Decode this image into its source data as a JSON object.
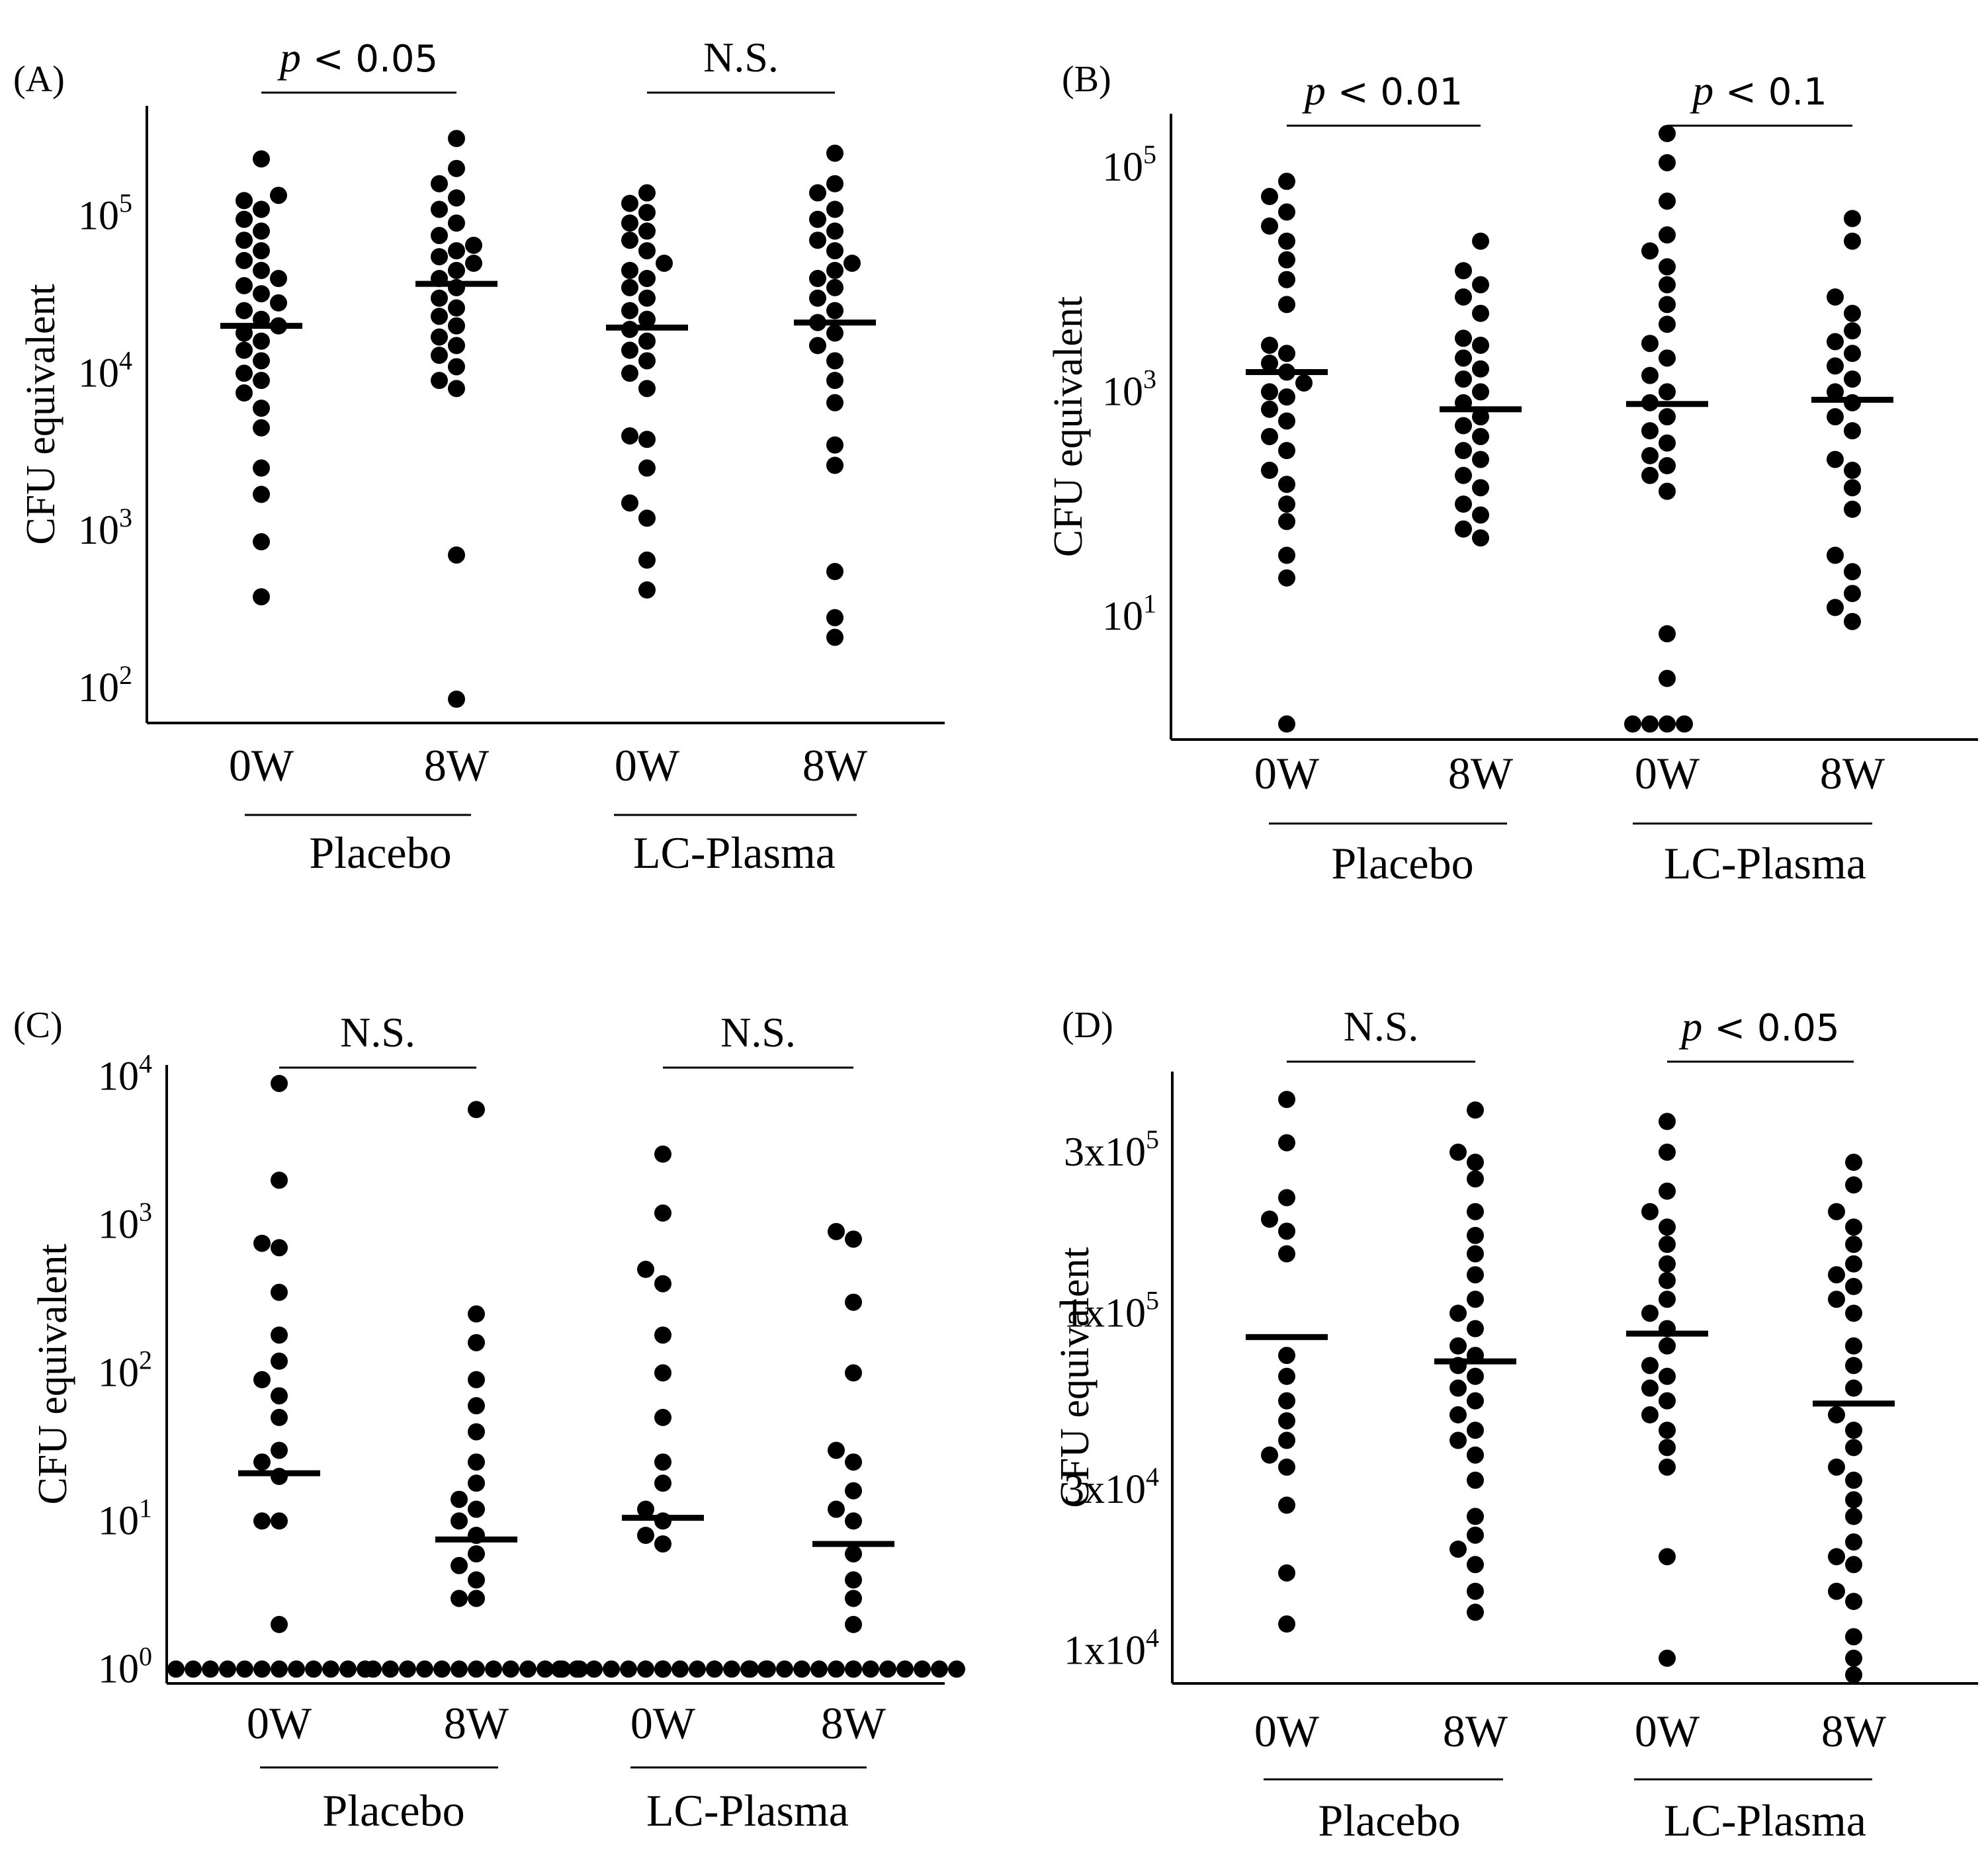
{
  "figure": {
    "background": "#ffffff",
    "ink": "#000000"
  },
  "chart_data": [
    {
      "panel": "(A)",
      "type": "scatter",
      "scale": "log10",
      "ylabel": "CFU equivalent",
      "ylim": [
        60,
        500000
      ],
      "yticks": [
        {
          "value": 100,
          "base": "10",
          "exp": "2"
        },
        {
          "value": 1000,
          "base": "10",
          "exp": "3"
        },
        {
          "value": 10000,
          "base": "10",
          "exp": "4"
        },
        {
          "value": 100000,
          "base": "10",
          "exp": "5"
        }
      ],
      "categories": [
        "0W",
        "8W",
        "0W",
        "8W"
      ],
      "groups": [
        {
          "name": "Placebo",
          "columns": [
            0,
            1
          ]
        },
        {
          "name": "LC-Plasma",
          "columns": [
            2,
            3
          ]
        }
      ],
      "comparisons": [
        {
          "columns": [
            0,
            1
          ],
          "p": "p",
          "rest": " < 0.05"
        },
        {
          "columns": [
            2,
            3
          ],
          "text": "N.S."
        }
      ],
      "medians": [
        20000,
        37000,
        19500,
        21000
      ],
      "series": [
        {
          "name": "Placebo 0W",
          "values": [
            380,
            850,
            1700,
            2500,
            4500,
            6000,
            7500,
            9000,
            10000,
            12000,
            14000,
            16000,
            18000,
            20000,
            22000,
            25000,
            28000,
            32000,
            36000,
            40000,
            45000,
            52000,
            60000,
            70000,
            80000,
            95000,
            110000,
            125000,
            135000,
            230000
          ]
        },
        {
          "name": "Placebo 8W",
          "values": [
            85,
            700,
            8000,
            9000,
            11000,
            13000,
            15000,
            17000,
            20000,
            23000,
            26000,
            30000,
            35000,
            40000,
            45000,
            50000,
            55000,
            60000,
            65000,
            75000,
            90000,
            110000,
            130000,
            160000,
            200000,
            310000
          ]
        },
        {
          "name": "LC-Plasma 0W",
          "values": [
            420,
            650,
            1200,
            1500,
            2500,
            3800,
            4000,
            8000,
            10000,
            12000,
            14000,
            16000,
            19000,
            22000,
            25000,
            30000,
            35000,
            40000,
            45000,
            50000,
            60000,
            70000,
            80000,
            90000,
            105000,
            120000,
            140000
          ]
        },
        {
          "name": "LC-Plasma 8W",
          "values": [
            210,
            280,
            550,
            2600,
            3500,
            6500,
            9000,
            12000,
            15000,
            18000,
            21000,
            25000,
            30000,
            35000,
            40000,
            45000,
            50000,
            60000,
            70000,
            80000,
            95000,
            110000,
            140000,
            160000,
            250000
          ]
        }
      ]
    },
    {
      "panel": "(B)",
      "type": "scatter",
      "scale": "log10",
      "ylabel": "CFU equivalent",
      "ylim": [
        0.8,
        300000
      ],
      "yticks": [
        {
          "value": 10,
          "base": "10",
          "exp": "1"
        },
        {
          "value": 1000,
          "base": "10",
          "exp": "3"
        },
        {
          "value": 100000,
          "base": "10",
          "exp": "5"
        }
      ],
      "categories": [
        "0W",
        "8W",
        "0W",
        "8W"
      ],
      "groups": [
        {
          "name": "Placebo",
          "columns": [
            0,
            1
          ]
        },
        {
          "name": "LC-Plasma",
          "columns": [
            2,
            3
          ]
        }
      ],
      "comparisons": [
        {
          "columns": [
            0,
            1
          ],
          "p": "p",
          "rest": " < 0.01"
        },
        {
          "columns": [
            2,
            3
          ],
          "p": "p",
          "rest": " < 0.1"
        }
      ],
      "medians": [
        1500,
        700,
        780,
        850
      ],
      "series": [
        {
          "name": "Placebo 0W",
          "values": [
            1.1,
            22,
            35,
            70,
            100,
            150,
            200,
            300,
            400,
            550,
            700,
            900,
            1000,
            1200,
            1500,
            1800,
            2200,
            2600,
            6000,
            10000,
            15000,
            22000,
            30000,
            40000,
            55000,
            75000
          ]
        },
        {
          "name": "Placebo 8W",
          "values": [
            50,
            60,
            80,
            100,
            140,
            180,
            250,
            300,
            400,
            500,
            600,
            800,
            1000,
            1300,
            1600,
            2000,
            2600,
            3000,
            5000,
            7000,
            9000,
            12000,
            22000
          ]
        },
        {
          "name": "LC-Plasma 0W",
          "values": [
            1.1,
            1.1,
            1.1,
            1.1,
            2.8,
            7,
            130,
            180,
            220,
            270,
            350,
            450,
            600,
            800,
            1000,
            1400,
            2000,
            2700,
            4000,
            6000,
            9000,
            13000,
            18000,
            25000,
            50000,
            110000,
            200000
          ]
        },
        {
          "name": "LC-Plasma 8W",
          "values": [
            9,
            12,
            16,
            25,
            35,
            90,
            140,
            200,
            250,
            450,
            600,
            800,
            1000,
            1300,
            1700,
            2200,
            2800,
            3500,
            5000,
            7000,
            22000,
            35000
          ]
        }
      ]
    },
    {
      "panel": "(C)",
      "type": "scatter",
      "scale": "log10",
      "ylabel": "CFU equivalent",
      "ylim": [
        0.8,
        12000
      ],
      "yticks": [
        {
          "value": 1,
          "base": "10",
          "exp": "0"
        },
        {
          "value": 10,
          "base": "10",
          "exp": "1"
        },
        {
          "value": 100,
          "base": "10",
          "exp": "2"
        },
        {
          "value": 1000,
          "base": "10",
          "exp": "3"
        },
        {
          "value": 10000,
          "base": "10",
          "exp": "4"
        }
      ],
      "categories": [
        "0W",
        "8W",
        "0W",
        "8W"
      ],
      "groups": [
        {
          "name": "Placebo",
          "columns": [
            0,
            1
          ]
        },
        {
          "name": "LC-Plasma",
          "columns": [
            2,
            3
          ]
        }
      ],
      "comparisons": [
        {
          "columns": [
            0,
            1
          ],
          "text": "N.S."
        },
        {
          "columns": [
            2,
            3
          ],
          "text": "N.S."
        }
      ],
      "medians": [
        21,
        7.5,
        10.5,
        7
      ],
      "series": [
        {
          "name": "Placebo 0W",
          "values": [
            1,
            1,
            1,
            1,
            1,
            1,
            1,
            1,
            1,
            1,
            1,
            1,
            2,
            10,
            10,
            20,
            25,
            30,
            50,
            70,
            90,
            120,
            180,
            350,
            700,
            750,
            2000,
            9000
          ]
        },
        {
          "name": "Placebo 8W",
          "values": [
            1,
            1,
            1,
            1,
            1,
            1,
            1,
            1,
            1,
            1,
            1,
            1,
            1,
            3,
            3,
            4,
            5,
            6,
            8,
            10,
            12,
            14,
            18,
            25,
            40,
            60,
            90,
            160,
            250,
            6000
          ]
        },
        {
          "name": "LC-Plasma 0W",
          "values": [
            1,
            1,
            1,
            1,
            1,
            1,
            1,
            1,
            1,
            1,
            1,
            1,
            1,
            1,
            1,
            7,
            8,
            10,
            12,
            18,
            25,
            50,
            100,
            180,
            400,
            500,
            1200,
            3000
          ]
        },
        {
          "name": "LC-Plasma 8W",
          "values": [
            1,
            1,
            1,
            1,
            1,
            1,
            1,
            1,
            1,
            1,
            1,
            1,
            1,
            1,
            2,
            3,
            4,
            6,
            10,
            12,
            16,
            25,
            30,
            100,
            300,
            800,
            900
          ]
        }
      ]
    },
    {
      "panel": "(D)",
      "type": "scatter",
      "scale": "log10",
      "ylabel": "CFU equivalent",
      "ylim": [
        8000,
        520000
      ],
      "yticks": [
        {
          "value": 10000,
          "base": "1x10",
          "exp": "4"
        },
        {
          "value": 30000,
          "base": "3x10",
          "exp": "4"
        },
        {
          "value": 100000,
          "base": "1x10",
          "exp": "5"
        },
        {
          "value": 300000,
          "base": "3x10",
          "exp": "5"
        }
      ],
      "categories": [
        "0W",
        "8W",
        "0W",
        "8W"
      ],
      "groups": [
        {
          "name": "Placebo",
          "columns": [
            0,
            1
          ]
        },
        {
          "name": "LC-Plasma",
          "columns": [
            2,
            3
          ]
        }
      ],
      "comparisons": [
        {
          "columns": [
            0,
            1
          ],
          "text": "N.S."
        },
        {
          "columns": [
            2,
            3
          ],
          "p": "p",
          "rest": " < 0.05"
        }
      ],
      "medians": [
        85000,
        72000,
        87000,
        54000
      ],
      "series": [
        {
          "name": "Placebo 0W",
          "values": [
            12000,
            17000,
            27000,
            35000,
            38000,
            42000,
            48000,
            55000,
            65000,
            75000,
            150000,
            175000,
            190000,
            220000,
            320000,
            430000
          ]
        },
        {
          "name": "Placebo 8W",
          "values": [
            13000,
            15000,
            18000,
            20000,
            22000,
            25000,
            32000,
            38000,
            42000,
            45000,
            50000,
            55000,
            60000,
            65000,
            70000,
            75000,
            80000,
            90000,
            100000,
            110000,
            130000,
            150000,
            170000,
            200000,
            250000,
            280000,
            300000,
            400000
          ]
        },
        {
          "name": "LC-Plasma 0W",
          "values": [
            9500,
            19000,
            35000,
            40000,
            45000,
            50000,
            55000,
            60000,
            65000,
            70000,
            80000,
            90000,
            100000,
            110000,
            125000,
            140000,
            160000,
            180000,
            200000,
            230000,
            300000,
            370000
          ]
        },
        {
          "name": "LC-Plasma 8W",
          "values": [
            7500,
            9500,
            11000,
            14000,
            15000,
            18000,
            19000,
            21000,
            25000,
            28000,
            32000,
            35000,
            40000,
            45000,
            50000,
            60000,
            70000,
            80000,
            100000,
            110000,
            120000,
            130000,
            140000,
            160000,
            180000,
            200000,
            240000,
            280000
          ]
        }
      ]
    }
  ]
}
